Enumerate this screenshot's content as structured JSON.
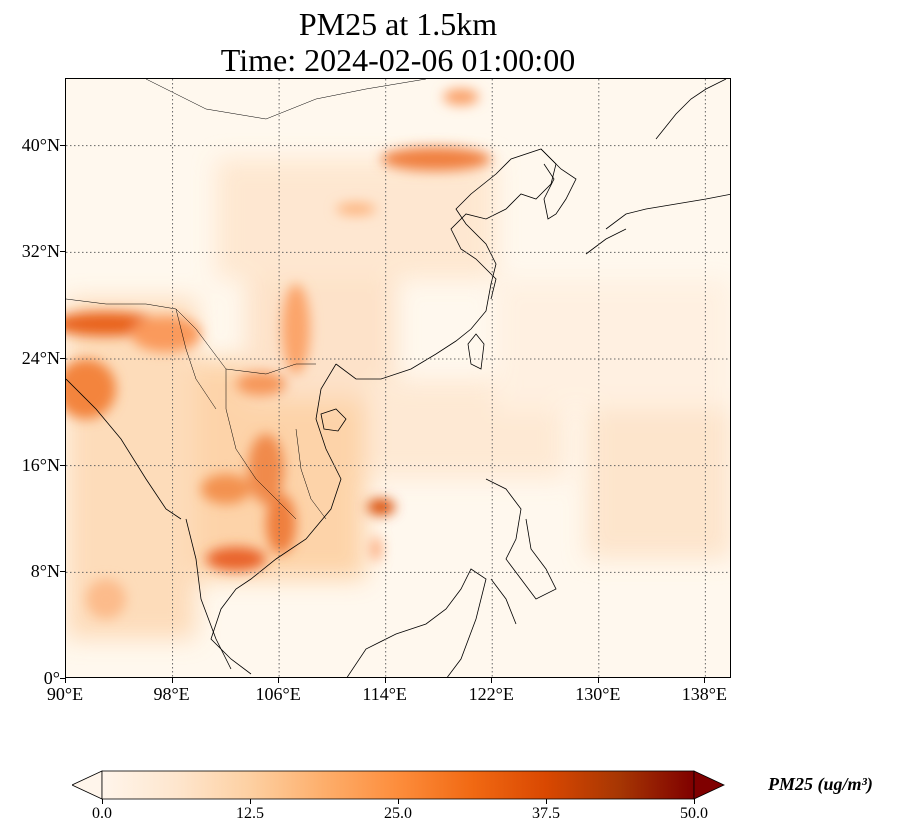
{
  "title": {
    "line1": "PM25 at 1.5km",
    "line2": "Time: 2024-02-06 01:00:00"
  },
  "map": {
    "extent": {
      "lon": [
        90,
        140
      ],
      "lat": [
        0,
        45
      ]
    },
    "lat_ticks": [
      {
        "value": 0,
        "label": "0°"
      },
      {
        "value": 8,
        "label": "8°N"
      },
      {
        "value": 16,
        "label": "16°N"
      },
      {
        "value": 24,
        "label": "24°N"
      },
      {
        "value": 32,
        "label": "32°N"
      },
      {
        "value": 40,
        "label": "40°N"
      }
    ],
    "lon_ticks": [
      {
        "value": 90,
        "label": "90°E"
      },
      {
        "value": 98,
        "label": "98°E"
      },
      {
        "value": 106,
        "label": "106°E"
      },
      {
        "value": 114,
        "label": "114°E"
      },
      {
        "value": 122,
        "label": "122°E"
      },
      {
        "value": 130,
        "label": "130°E"
      },
      {
        "value": 138,
        "label": "138°E"
      }
    ],
    "gridlines": true,
    "colormap": [
      "#fff5eb",
      "#fee6ce",
      "#fdd0a2",
      "#fdae6b",
      "#fd8d3c",
      "#f16913",
      "#d94801",
      "#a63603",
      "#7f2704"
    ]
  },
  "colorbar": {
    "label": "PM25 (ug/m³)",
    "ticks": [
      "0.0",
      "12.5",
      "25.0",
      "37.5",
      "50.0"
    ],
    "range": [
      0,
      50
    ],
    "extend": "both"
  }
}
